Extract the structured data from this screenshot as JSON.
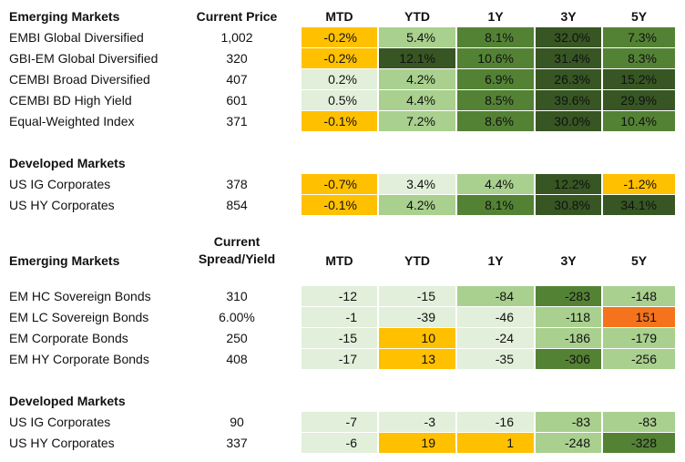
{
  "colors": {
    "orange": "#FFC000",
    "light_green": "#E2EFDA",
    "mid_green": "#A9D08E",
    "green": "#548235",
    "dark_green": "#375623",
    "red_orange": "#F4731C"
  },
  "table1": {
    "header": {
      "label": "Emerging Markets",
      "price": "Current Price",
      "cols": [
        "MTD",
        "YTD",
        "1Y",
        "3Y",
        "5Y"
      ]
    },
    "em_rows": [
      {
        "label": "EMBI Global Diversified",
        "price": "1,002",
        "cells": [
          [
            "-0.2%",
            "orange"
          ],
          [
            "5.4%",
            "mid_green"
          ],
          [
            "8.1%",
            "green"
          ],
          [
            "32.0%",
            "dark_green"
          ],
          [
            "7.3%",
            "green"
          ]
        ]
      },
      {
        "label": "GBI-EM Global Diversified",
        "price": "320",
        "cells": [
          [
            "-0.2%",
            "orange"
          ],
          [
            "12.1%",
            "dark_green"
          ],
          [
            "10.6%",
            "green"
          ],
          [
            "31.4%",
            "dark_green"
          ],
          [
            "8.3%",
            "green"
          ]
        ]
      },
      {
        "label": "CEMBI Broad Diversified",
        "price": "407",
        "cells": [
          [
            "0.2%",
            "light_green"
          ],
          [
            "4.2%",
            "mid_green"
          ],
          [
            "6.9%",
            "green"
          ],
          [
            "26.3%",
            "dark_green"
          ],
          [
            "15.2%",
            "dark_green"
          ]
        ]
      },
      {
        "label": "CEMBI BD High Yield",
        "price": "601",
        "cells": [
          [
            "0.5%",
            "light_green"
          ],
          [
            "4.4%",
            "mid_green"
          ],
          [
            "8.5%",
            "green"
          ],
          [
            "39.6%",
            "dark_green"
          ],
          [
            "29.9%",
            "dark_green"
          ]
        ]
      },
      {
        "label": "Equal-Weighted Index",
        "price": "371",
        "cells": [
          [
            "-0.1%",
            "orange"
          ],
          [
            "7.2%",
            "mid_green"
          ],
          [
            "8.6%",
            "green"
          ],
          [
            "30.0%",
            "dark_green"
          ],
          [
            "10.4%",
            "green"
          ]
        ]
      }
    ],
    "dm_title": "Developed Markets",
    "dm_rows": [
      {
        "label": "US IG Corporates",
        "price": "378",
        "cells": [
          [
            "-0.7%",
            "orange"
          ],
          [
            "3.4%",
            "light_green"
          ],
          [
            "4.4%",
            "mid_green"
          ],
          [
            "12.2%",
            "dark_green"
          ],
          [
            "-1.2%",
            "orange"
          ]
        ]
      },
      {
        "label": "US HY Corporates",
        "price": "854",
        "cells": [
          [
            "-0.1%",
            "orange"
          ],
          [
            "4.2%",
            "mid_green"
          ],
          [
            "8.1%",
            "green"
          ],
          [
            "30.8%",
            "dark_green"
          ],
          [
            "34.1%",
            "dark_green"
          ]
        ]
      }
    ]
  },
  "table2": {
    "header": {
      "label": "Emerging Markets",
      "price_line1": "Current",
      "price_line2": "Spread/Yield",
      "cols": [
        "MTD",
        "YTD",
        "1Y",
        "3Y",
        "5Y"
      ]
    },
    "em_rows": [
      {
        "label": "EM HC Sovereign Bonds",
        "price": "310",
        "cells": [
          [
            "-12",
            "light_green"
          ],
          [
            "-15",
            "light_green"
          ],
          [
            "-84",
            "mid_green"
          ],
          [
            "-283",
            "green"
          ],
          [
            "-148",
            "mid_green"
          ]
        ]
      },
      {
        "label": "EM LC Sovereign Bonds",
        "price": "6.00%",
        "cells": [
          [
            "-1",
            "light_green"
          ],
          [
            "-39",
            "light_green"
          ],
          [
            "-46",
            "light_green"
          ],
          [
            "-118",
            "mid_green"
          ],
          [
            "151",
            "red_orange"
          ]
        ]
      },
      {
        "label": "EM Corporate Bonds",
        "price": "250",
        "cells": [
          [
            "-15",
            "light_green"
          ],
          [
            "10",
            "orange"
          ],
          [
            "-24",
            "light_green"
          ],
          [
            "-186",
            "mid_green"
          ],
          [
            "-179",
            "mid_green"
          ]
        ]
      },
      {
        "label": "EM HY Corporate Bonds",
        "price": "408",
        "cells": [
          [
            "-17",
            "light_green"
          ],
          [
            "13",
            "orange"
          ],
          [
            "-35",
            "light_green"
          ],
          [
            "-306",
            "green"
          ],
          [
            "-256",
            "mid_green"
          ]
        ]
      }
    ],
    "dm_title": "Developed Markets",
    "dm_rows": [
      {
        "label": "US IG Corporates",
        "price": "90",
        "cells": [
          [
            "-7",
            "light_green"
          ],
          [
            "-3",
            "light_green"
          ],
          [
            "-16",
            "light_green"
          ],
          [
            "-83",
            "mid_green"
          ],
          [
            "-83",
            "mid_green"
          ]
        ]
      },
      {
        "label": "US HY Corporates",
        "price": "337",
        "cells": [
          [
            "-6",
            "light_green"
          ],
          [
            "19",
            "orange"
          ],
          [
            "1",
            "orange"
          ],
          [
            "-248",
            "mid_green"
          ],
          [
            "-328",
            "green"
          ]
        ]
      }
    ]
  }
}
